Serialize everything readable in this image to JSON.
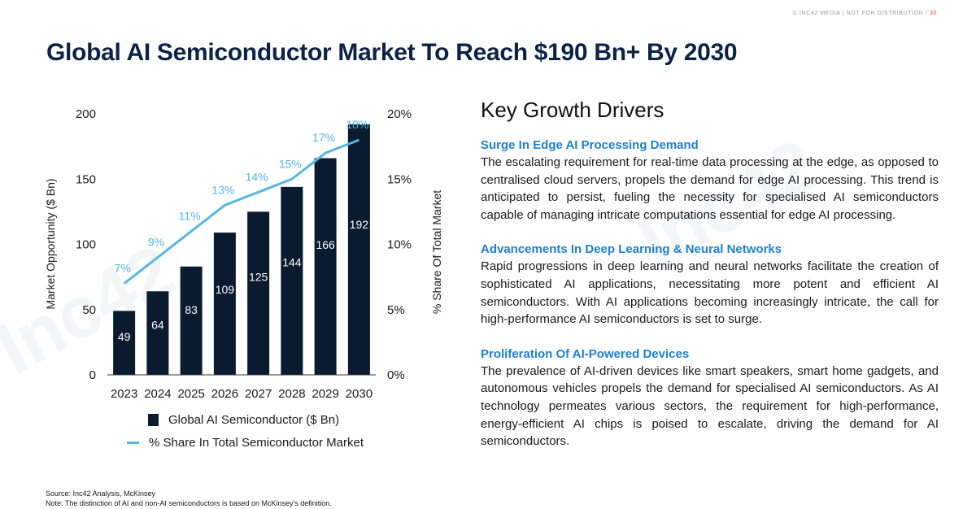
{
  "header": {
    "source_line": "© INC42 MEDIA | NOT FOR DISTRIBUTION /",
    "page_number": "30",
    "title": "Global AI Semiconductor Market To Reach $190 Bn+ By 2030"
  },
  "chart_data": {
    "type": "bar",
    "categories": [
      "2023",
      "2024",
      "2025",
      "2026",
      "2027",
      "2028",
      "2029",
      "2030"
    ],
    "series": [
      {
        "name": "Global AI Semiconductor ($ Bn)",
        "type": "bar",
        "axis": "left",
        "values": [
          49,
          64,
          83,
          109,
          125,
          144,
          166,
          192
        ],
        "data_labels": [
          "49",
          "64",
          "83",
          "109",
          "125",
          "144",
          "166",
          "192"
        ],
        "color": "#0a1a2f"
      },
      {
        "name": "% Share In Total Semiconductor Market",
        "type": "line",
        "axis": "right",
        "values": [
          7,
          9,
          11,
          13,
          14,
          15,
          17,
          18
        ],
        "data_labels": [
          "7%",
          "9%",
          "11%",
          "13%",
          "14%",
          "15%",
          "17%",
          "18%"
        ],
        "color": "#56b6e6"
      }
    ],
    "ylabel": "Market Opportunity ($ Bn)",
    "y2label": "% Share Of Total Market",
    "ylim": [
      0,
      200
    ],
    "y2lim": [
      0,
      20
    ],
    "yticks": [
      "0",
      "50",
      "100",
      "150",
      "200"
    ],
    "y2ticks": [
      "0%",
      "5%",
      "10%",
      "15%",
      "20%"
    ],
    "grid": false,
    "legend": "bottom"
  },
  "legend": {
    "bar_label": "Global AI Semiconductor ($ Bn)",
    "line_label": "% Share In Total Semiconductor Market"
  },
  "drivers_section": {
    "heading": "Key Growth Drivers",
    "items": [
      {
        "title": "Surge In Edge AI Processing Demand",
        "text": "The escalating requirement for real-time data processing at the edge, as opposed to centralised cloud servers, propels the demand for edge AI processing. This trend is anticipated to persist, fueling the necessity for specialised AI semiconductors capable of managing intricate computations essential for edge AI processing."
      },
      {
        "title": "Advancements In Deep Learning & Neural Networks",
        "text": "Rapid progressions in deep learning and neural networks facilitate the creation of sophisticated AI applications, necessitating more potent and efficient AI semiconductors. With AI applications becoming increasingly intricate, the call for high-performance AI semiconductors is set to surge."
      },
      {
        "title": "Proliferation Of AI-Powered Devices",
        "text": "The prevalence of AI-driven devices like smart speakers, smart home gadgets, and autonomous vehicles propels the demand for specialised AI semiconductors. As AI technology permeates various sectors, the requirement for high-performance, energy-efficient AI chips is poised to escalate, driving the demand for AI semiconductors."
      }
    ]
  },
  "footer": {
    "source": "Source: Inc42 Analysis, McKinsey",
    "note": "Note: The distinction of AI and non-AI semiconductors is based on McKinsey's definition."
  }
}
